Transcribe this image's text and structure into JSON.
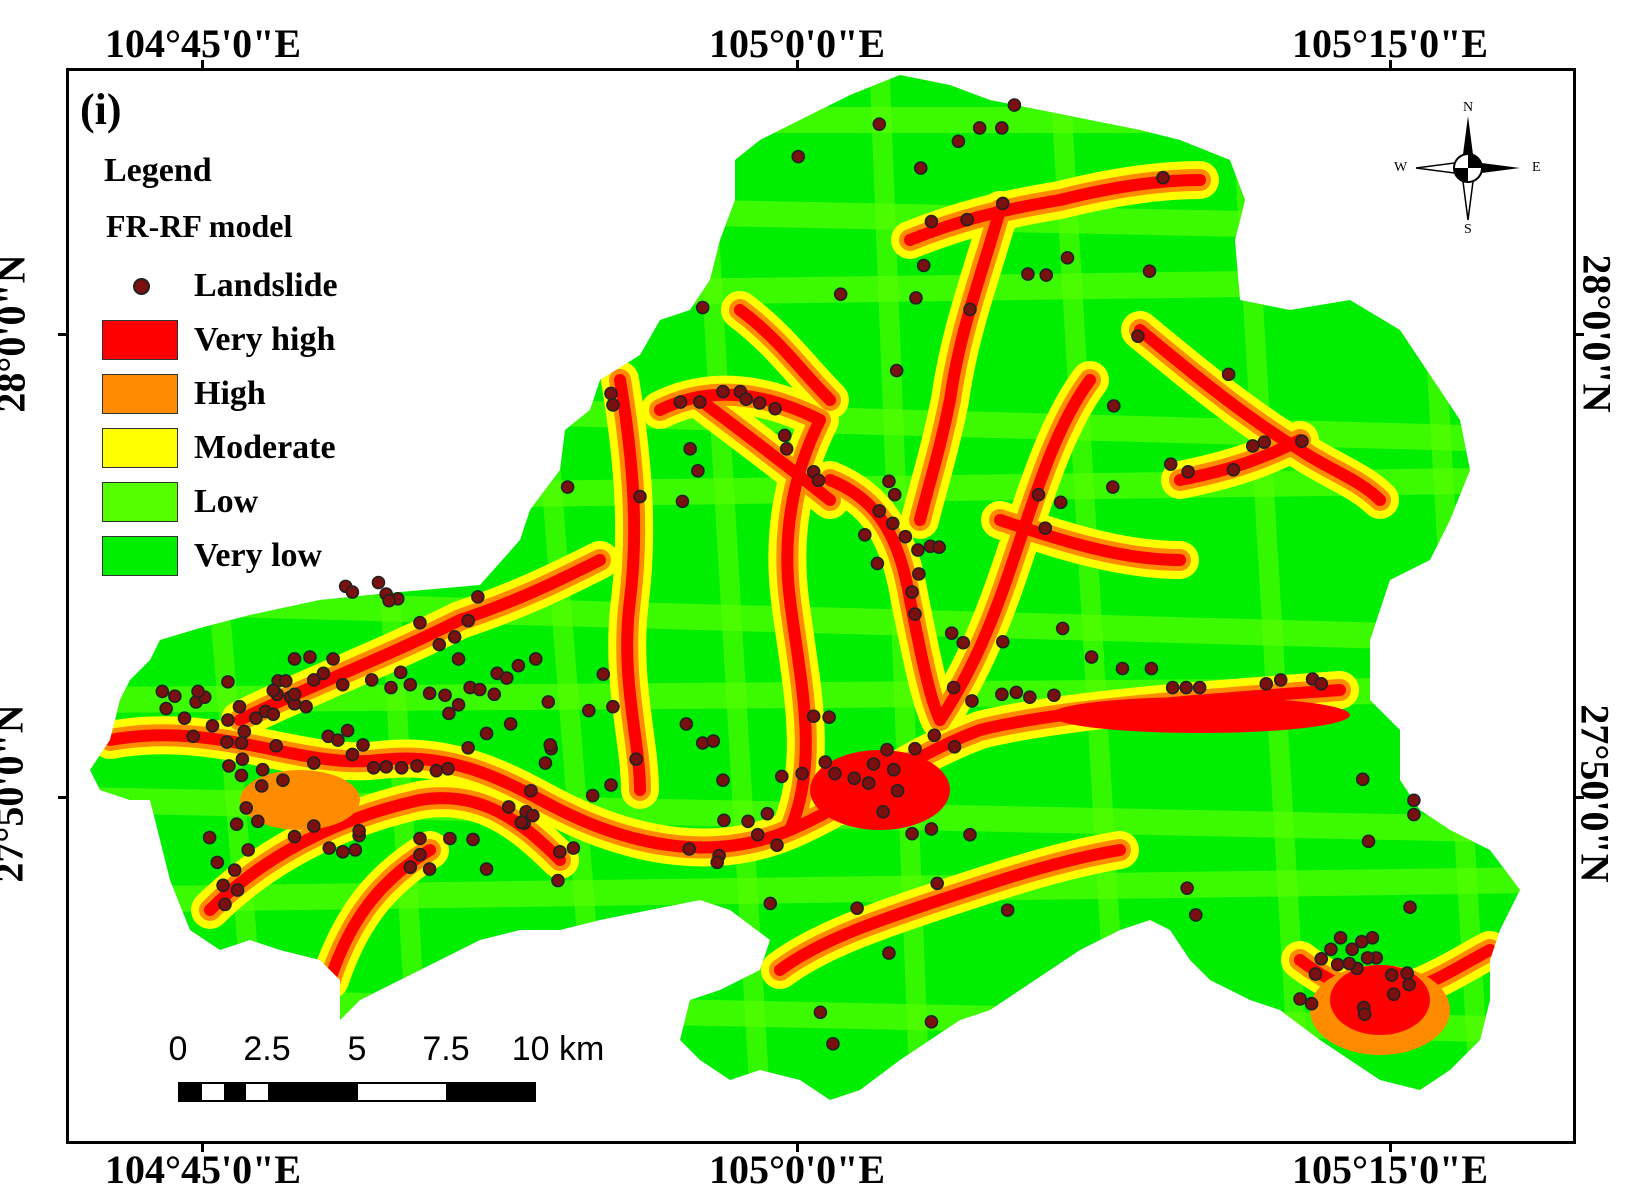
{
  "panel_label": "(i)",
  "coordinates": {
    "top": [
      "104°45'0\"E",
      "105°0'0\"E",
      "105°15'0\"E"
    ],
    "bottom": [
      "104°45'0\"E",
      "105°0'0\"E",
      "105°15'0\"E"
    ],
    "left": [
      "28°0'0\"N",
      "27°50'0\"N"
    ],
    "right": [
      "28°0'0\"N",
      "27°50'0\"N"
    ]
  },
  "legend": {
    "title": "Legend",
    "subtitle": "FR-RF  model",
    "landslide_label": "Landslide",
    "classes": [
      {
        "label": "Very high",
        "color": "#ff0000"
      },
      {
        "label": "High",
        "color": "#ff8c00"
      },
      {
        "label": "Moderate",
        "color": "#ffff00"
      },
      {
        "label": "Low",
        "color": "#55ff00"
      },
      {
        "label": "Very low",
        "color": "#00ee00"
      }
    ]
  },
  "scalebar": {
    "labels": [
      "0",
      "2.5",
      "5",
      "7.5",
      "10 km"
    ]
  },
  "compass": {
    "n": "N",
    "s": "S",
    "e": "E",
    "w": "W"
  },
  "colors": {
    "landslide_fill": "#7a1010",
    "very_high": "#ff0000",
    "high": "#ff8c00",
    "moderate": "#ffff00",
    "low": "#55ff00",
    "very_low": "#00ee00"
  }
}
